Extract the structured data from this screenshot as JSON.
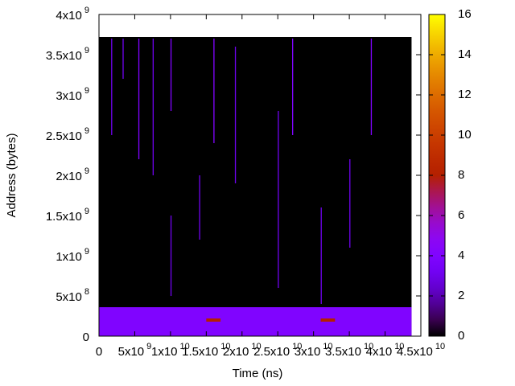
{
  "chart_data": {
    "type": "heatmap",
    "x_label": "Time (ns)",
    "y_label": "Address (bytes)",
    "xlim": [
      0,
      45000000000
    ],
    "ylim": [
      0,
      4000000000
    ],
    "clim": [
      0,
      16
    ],
    "xticks": [
      0,
      {
        "value": 5000000000,
        "label": "5x10^9"
      },
      {
        "value": 10000000000,
        "label": "1x10^10"
      },
      {
        "value": 15000000000,
        "label": "1.5x10^10"
      },
      {
        "value": 20000000000,
        "label": "2x10^10"
      },
      {
        "value": 25000000000,
        "label": "2.5x10^10"
      },
      {
        "value": 30000000000,
        "label": "3x10^10"
      },
      {
        "value": 35000000000,
        "label": "3.5x10^10"
      },
      {
        "value": 40000000000,
        "label": "4x10^10"
      },
      {
        "value": 45000000000,
        "label": "4.5x10^10"
      }
    ],
    "yticks": [
      0,
      {
        "value": 500000000,
        "label": "5x10^8"
      },
      {
        "value": 1000000000,
        "label": "1x10^9"
      },
      {
        "value": 1500000000,
        "label": "1.5x10^9"
      },
      {
        "value": 2000000000,
        "label": "2x10^9"
      },
      {
        "value": 2500000000,
        "label": "2.5x10^9"
      },
      {
        "value": 3000000000,
        "label": "3x10^9"
      },
      {
        "value": 3500000000,
        "label": "3.5x10^9"
      },
      {
        "value": 4000000000,
        "label": "4x10^9"
      }
    ],
    "cticks": [
      0,
      2,
      4,
      6,
      8,
      10,
      12,
      14,
      16
    ],
    "cells": {
      "x0": [
        0,
        0,
        15000000000,
        31000000000,
        1700000000,
        3300000000,
        5500000000,
        7500000000,
        10000000000,
        10000000000,
        16000000000,
        19000000000,
        25000000000,
        27000000000,
        31000000000,
        35000000000,
        38000000000,
        14000000000
      ],
      "x1": [
        43700000000,
        43700000000,
        17000000000,
        33000000000,
        1850000000,
        3450000000,
        5650000000,
        7650000000,
        10150000000,
        10150000000,
        16150000000,
        19150000000,
        25150000000,
        27150000000,
        31150000000,
        35150000000,
        38150000000,
        14150000000
      ],
      "y0": [
        0,
        0,
        180000000,
        180000000,
        2500000000,
        3200000000,
        2200000000,
        2000000000,
        2800000000,
        500000000,
        2400000000,
        1900000000,
        600000000,
        2500000000,
        400000000,
        1100000000,
        2500000000,
        1200000000
      ],
      "y1": [
        3720000000,
        360000000,
        220000000,
        220000000,
        3700000000,
        3700000000,
        3700000000,
        3700000000,
        3700000000,
        1500000000,
        3700000000,
        3600000000,
        2800000000,
        3700000000,
        1600000000,
        2200000000,
        3700000000,
        2000000000
      ],
      "values": [
        0,
        4,
        8,
        8,
        3,
        3,
        4,
        3,
        4,
        3,
        4,
        3,
        3,
        4,
        3,
        3,
        4,
        3
      ]
    }
  }
}
